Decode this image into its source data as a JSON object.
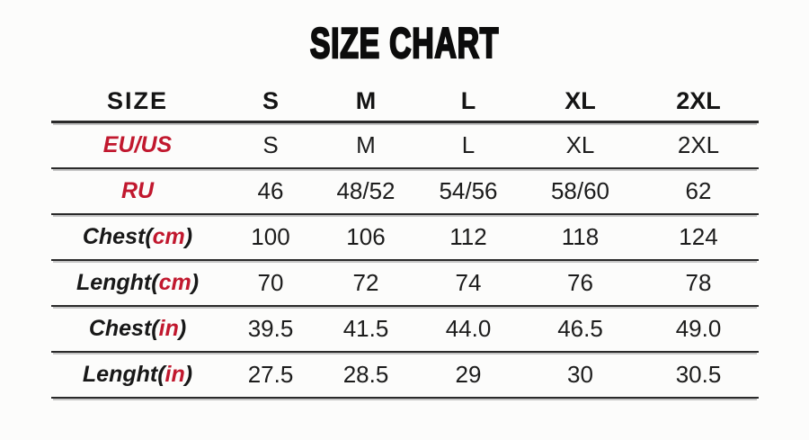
{
  "title": "SIZE CHART",
  "colors": {
    "accent_red": "#C1182E",
    "line": "#2a2a2a",
    "text": "#1c1c1c",
    "background": "#fcfcfb"
  },
  "table": {
    "header": {
      "label": "SIZE",
      "columns": [
        "S",
        "M",
        "L",
        "XL",
        "2XL"
      ]
    },
    "rows": [
      {
        "label_black": "",
        "label_red": "EU/US",
        "label_close": "",
        "values": [
          "S",
          "M",
          "L",
          "XL",
          "2XL"
        ]
      },
      {
        "label_black": "",
        "label_red": "RU",
        "label_close": "",
        "values": [
          "46",
          "48/52",
          "54/56",
          "58/60",
          "62"
        ]
      },
      {
        "label_black": "Chest(",
        "label_red": "cm",
        "label_close": ")",
        "values": [
          "100",
          "106",
          "112",
          "118",
          "124"
        ]
      },
      {
        "label_black": "Lenght(",
        "label_red": "cm",
        "label_close": ")",
        "values": [
          "70",
          "72",
          "74",
          "76",
          "78"
        ]
      },
      {
        "label_black": "Chest(",
        "label_red": "in",
        "label_close": ")",
        "values": [
          "39.5",
          "41.5",
          "44.0",
          "46.5",
          "49.0"
        ]
      },
      {
        "label_black": "Lenght(",
        "label_red": "in",
        "label_close": ")",
        "values": [
          "27.5",
          "28.5",
          "29",
          "30",
          "30.5"
        ]
      }
    ]
  },
  "chart_data": {
    "type": "table",
    "title": "SIZE CHART",
    "columns": [
      "SIZE",
      "S",
      "M",
      "L",
      "XL",
      "2XL"
    ],
    "rows": [
      [
        "EU/US",
        "S",
        "M",
        "L",
        "XL",
        "2XL"
      ],
      [
        "RU",
        "46",
        "48/52",
        "54/56",
        "58/60",
        "62"
      ],
      [
        "Chest(cm)",
        "100",
        "106",
        "112",
        "118",
        "124"
      ],
      [
        "Lenght(cm)",
        "70",
        "72",
        "74",
        "76",
        "78"
      ],
      [
        "Chest(in)",
        "39.5",
        "41.5",
        "44.0",
        "46.5",
        "49.0"
      ],
      [
        "Lenght(in)",
        "27.5",
        "28.5",
        "29",
        "30",
        "30.5"
      ]
    ],
    "notes": "Garment size conversion chart; header row bold black, region labels and units highlighted red; horizontal rule between every row; no vertical rules."
  }
}
